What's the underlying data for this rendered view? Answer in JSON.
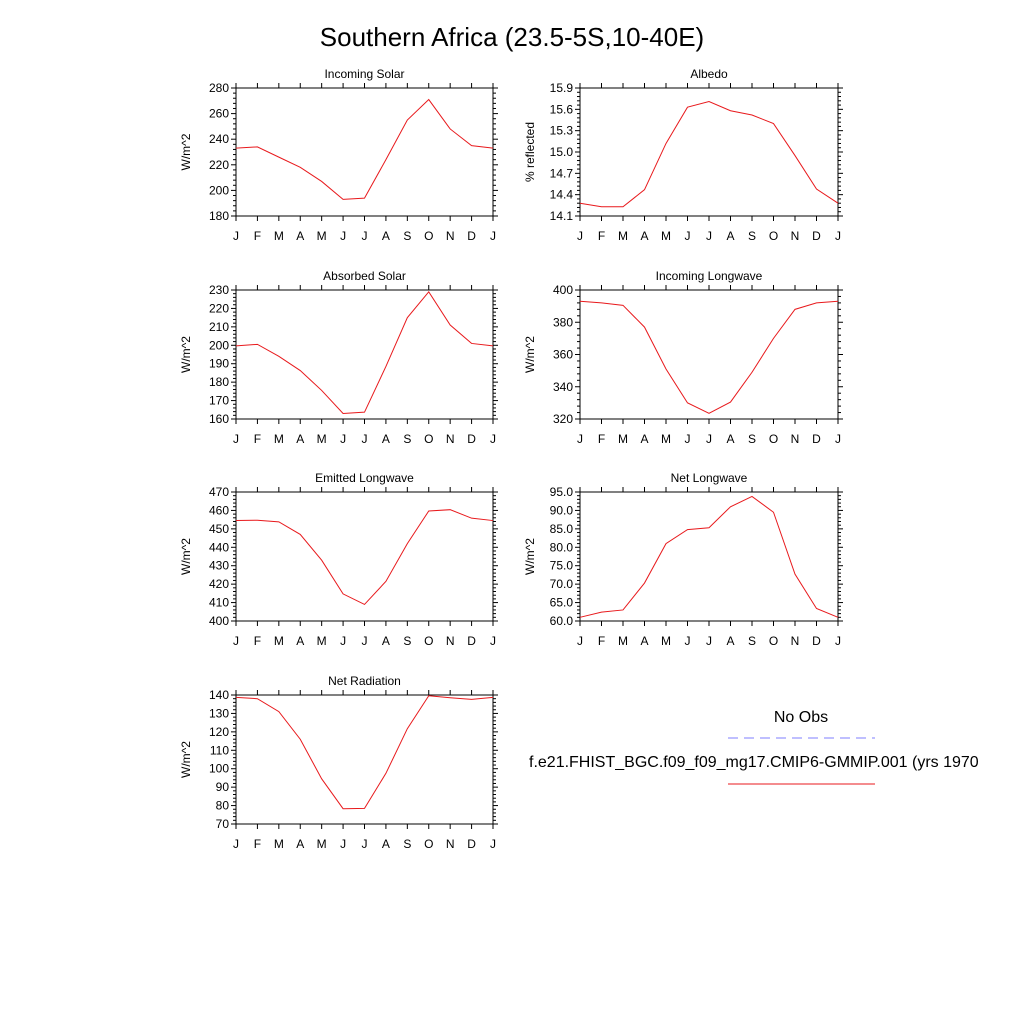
{
  "title": "Southern Africa (23.5-5S,10-40E)",
  "chart_data": [
    {
      "type": "line",
      "title": "Incoming Solar",
      "ylabel": "W/m^2",
      "categories": [
        "J",
        "F",
        "M",
        "A",
        "M",
        "J",
        "J",
        "A",
        "S",
        "O",
        "N",
        "D",
        "J"
      ],
      "yticks": [
        "180",
        "200",
        "220",
        "240",
        "260",
        "280"
      ],
      "ylim": [
        180,
        280
      ],
      "series": [
        {
          "values": [
            233,
            234,
            226,
            218,
            207,
            193,
            194,
            224,
            255,
            271,
            248,
            235,
            233
          ],
          "color": "#e8191c"
        }
      ]
    },
    {
      "type": "line",
      "title": "Albedo",
      "ylabel": "% reflected",
      "categories": [
        "J",
        "F",
        "M",
        "A",
        "M",
        "J",
        "J",
        "A",
        "S",
        "O",
        "N",
        "D",
        "J"
      ],
      "yticks": [
        "14.1",
        "14.4",
        "14.7",
        "15.0",
        "15.3",
        "15.6",
        "15.9"
      ],
      "ylim": [
        14.1,
        15.9
      ],
      "series": [
        {
          "values": [
            14.28,
            14.23,
            14.23,
            14.47,
            15.12,
            15.63,
            15.71,
            15.58,
            15.52,
            15.4,
            14.95,
            14.48,
            14.28
          ],
          "color": "#e8191c"
        }
      ]
    },
    {
      "type": "line",
      "title": "Absorbed Solar",
      "ylabel": "W/m^2",
      "categories": [
        "J",
        "F",
        "M",
        "A",
        "M",
        "J",
        "J",
        "A",
        "S",
        "O",
        "N",
        "D",
        "J"
      ],
      "yticks": [
        "160",
        "170",
        "180",
        "190",
        "200",
        "210",
        "220",
        "230"
      ],
      "ylim": [
        160,
        230
      ],
      "series": [
        {
          "values": [
            199.7,
            200.5,
            194,
            186.3,
            175.5,
            163,
            163.7,
            188.5,
            215,
            229,
            211,
            201,
            199.7
          ],
          "color": "#e8191c"
        }
      ]
    },
    {
      "type": "line",
      "title": "Incoming Longwave",
      "ylabel": "W/m^2",
      "categories": [
        "J",
        "F",
        "M",
        "A",
        "M",
        "J",
        "J",
        "A",
        "S",
        "O",
        "N",
        "D",
        "J"
      ],
      "yticks": [
        "320",
        "340",
        "360",
        "380",
        "400"
      ],
      "ylim": [
        320,
        400
      ],
      "series": [
        {
          "values": [
            393,
            392,
            390.5,
            377,
            351,
            330,
            323.5,
            330.5,
            349,
            370,
            388,
            392,
            393
          ],
          "color": "#e8191c"
        }
      ]
    },
    {
      "type": "line",
      "title": "Emitted Longwave",
      "ylabel": "W/m^2",
      "categories": [
        "J",
        "F",
        "M",
        "A",
        "M",
        "J",
        "J",
        "A",
        "S",
        "O",
        "N",
        "D",
        "J"
      ],
      "yticks": [
        "400",
        "410",
        "420",
        "430",
        "440",
        "450",
        "460",
        "470"
      ],
      "ylim": [
        400,
        470
      ],
      "series": [
        {
          "values": [
            454.5,
            454.7,
            453.8,
            447,
            433,
            414.7,
            409,
            421.5,
            442,
            459.7,
            460.4,
            455.8,
            454.5
          ],
          "color": "#e8191c"
        }
      ]
    },
    {
      "type": "line",
      "title": "Net Longwave",
      "ylabel": "W/m^2",
      "categories": [
        "J",
        "F",
        "M",
        "A",
        "M",
        "J",
        "J",
        "A",
        "S",
        "O",
        "N",
        "D",
        "J"
      ],
      "yticks": [
        "60.0",
        "65.0",
        "70.0",
        "75.0",
        "80.0",
        "85.0",
        "90.0",
        "95.0"
      ],
      "ylim": [
        60,
        95
      ],
      "series": [
        {
          "values": [
            61,
            62.4,
            63,
            70.3,
            81,
            84.8,
            85.3,
            91,
            93.8,
            89.5,
            72.7,
            63.4,
            61
          ],
          "color": "#e8191c"
        }
      ]
    },
    {
      "type": "line",
      "title": "Net Radiation",
      "ylabel": "W/m^2",
      "categories": [
        "J",
        "F",
        "M",
        "A",
        "M",
        "J",
        "J",
        "A",
        "S",
        "O",
        "N",
        "D",
        "J"
      ],
      "yticks": [
        "70",
        "80",
        "90",
        "100",
        "110",
        "120",
        "130",
        "140"
      ],
      "ylim": [
        70,
        140
      ],
      "series": [
        {
          "values": [
            138.7,
            138,
            131,
            116,
            94.5,
            78.3,
            78.5,
            97.5,
            121.7,
            139.6,
            138.5,
            137.6,
            138.7
          ],
          "color": "#e8191c"
        }
      ]
    }
  ],
  "legend": {
    "obs_label": "No Obs",
    "obs_color": "#7f7fff",
    "model_label": "f.e21.FHIST_BGC.f09_f09_mg17.CMIP6-GMMIP.001 (yrs 1970",
    "model_color": "#e8191c"
  }
}
